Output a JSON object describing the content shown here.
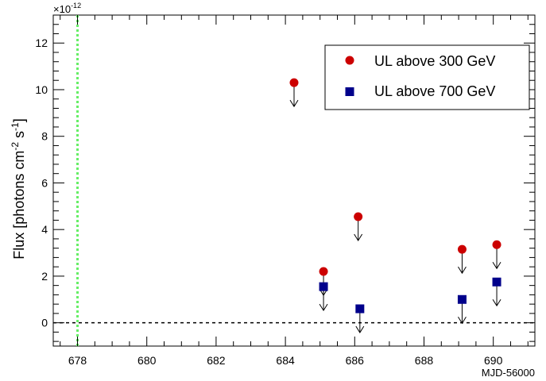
{
  "chart_data": {
    "type": "scatter",
    "xlabel": "MJD-56000",
    "ylabel": "Flux [photons cm",
    "ylabel_sup1": "-2",
    "ylabel_mid": " s",
    "ylabel_sup2": "-1",
    "ylabel_end": "]",
    "y_exponent": "×10",
    "y_exponent_sup": "-12",
    "xlim": [
      677.3,
      691.2
    ],
    "ylim": [
      -1.0,
      13.2
    ],
    "x_ticks": [
      678,
      680,
      682,
      684,
      686,
      688,
      690
    ],
    "y_ticks": [
      0,
      2,
      4,
      6,
      8,
      10,
      12
    ],
    "reference_vline_x": 678,
    "reference_hline_y": 0,
    "legend_position": "top-right",
    "series": [
      {
        "name": "UL above 300 GeV",
        "marker": "circle",
        "color": "#cc0000",
        "upper_limit": true,
        "x": [
          684.25,
          685.1,
          686.1,
          689.1,
          690.1
        ],
        "y": [
          10.3,
          2.2,
          4.55,
          3.15,
          3.35
        ]
      },
      {
        "name": "UL above 700 GeV",
        "marker": "square",
        "color": "#00008b",
        "upper_limit": true,
        "x": [
          685.1,
          686.15,
          689.1,
          690.1
        ],
        "y": [
          1.55,
          0.6,
          1.0,
          1.75
        ]
      }
    ]
  }
}
